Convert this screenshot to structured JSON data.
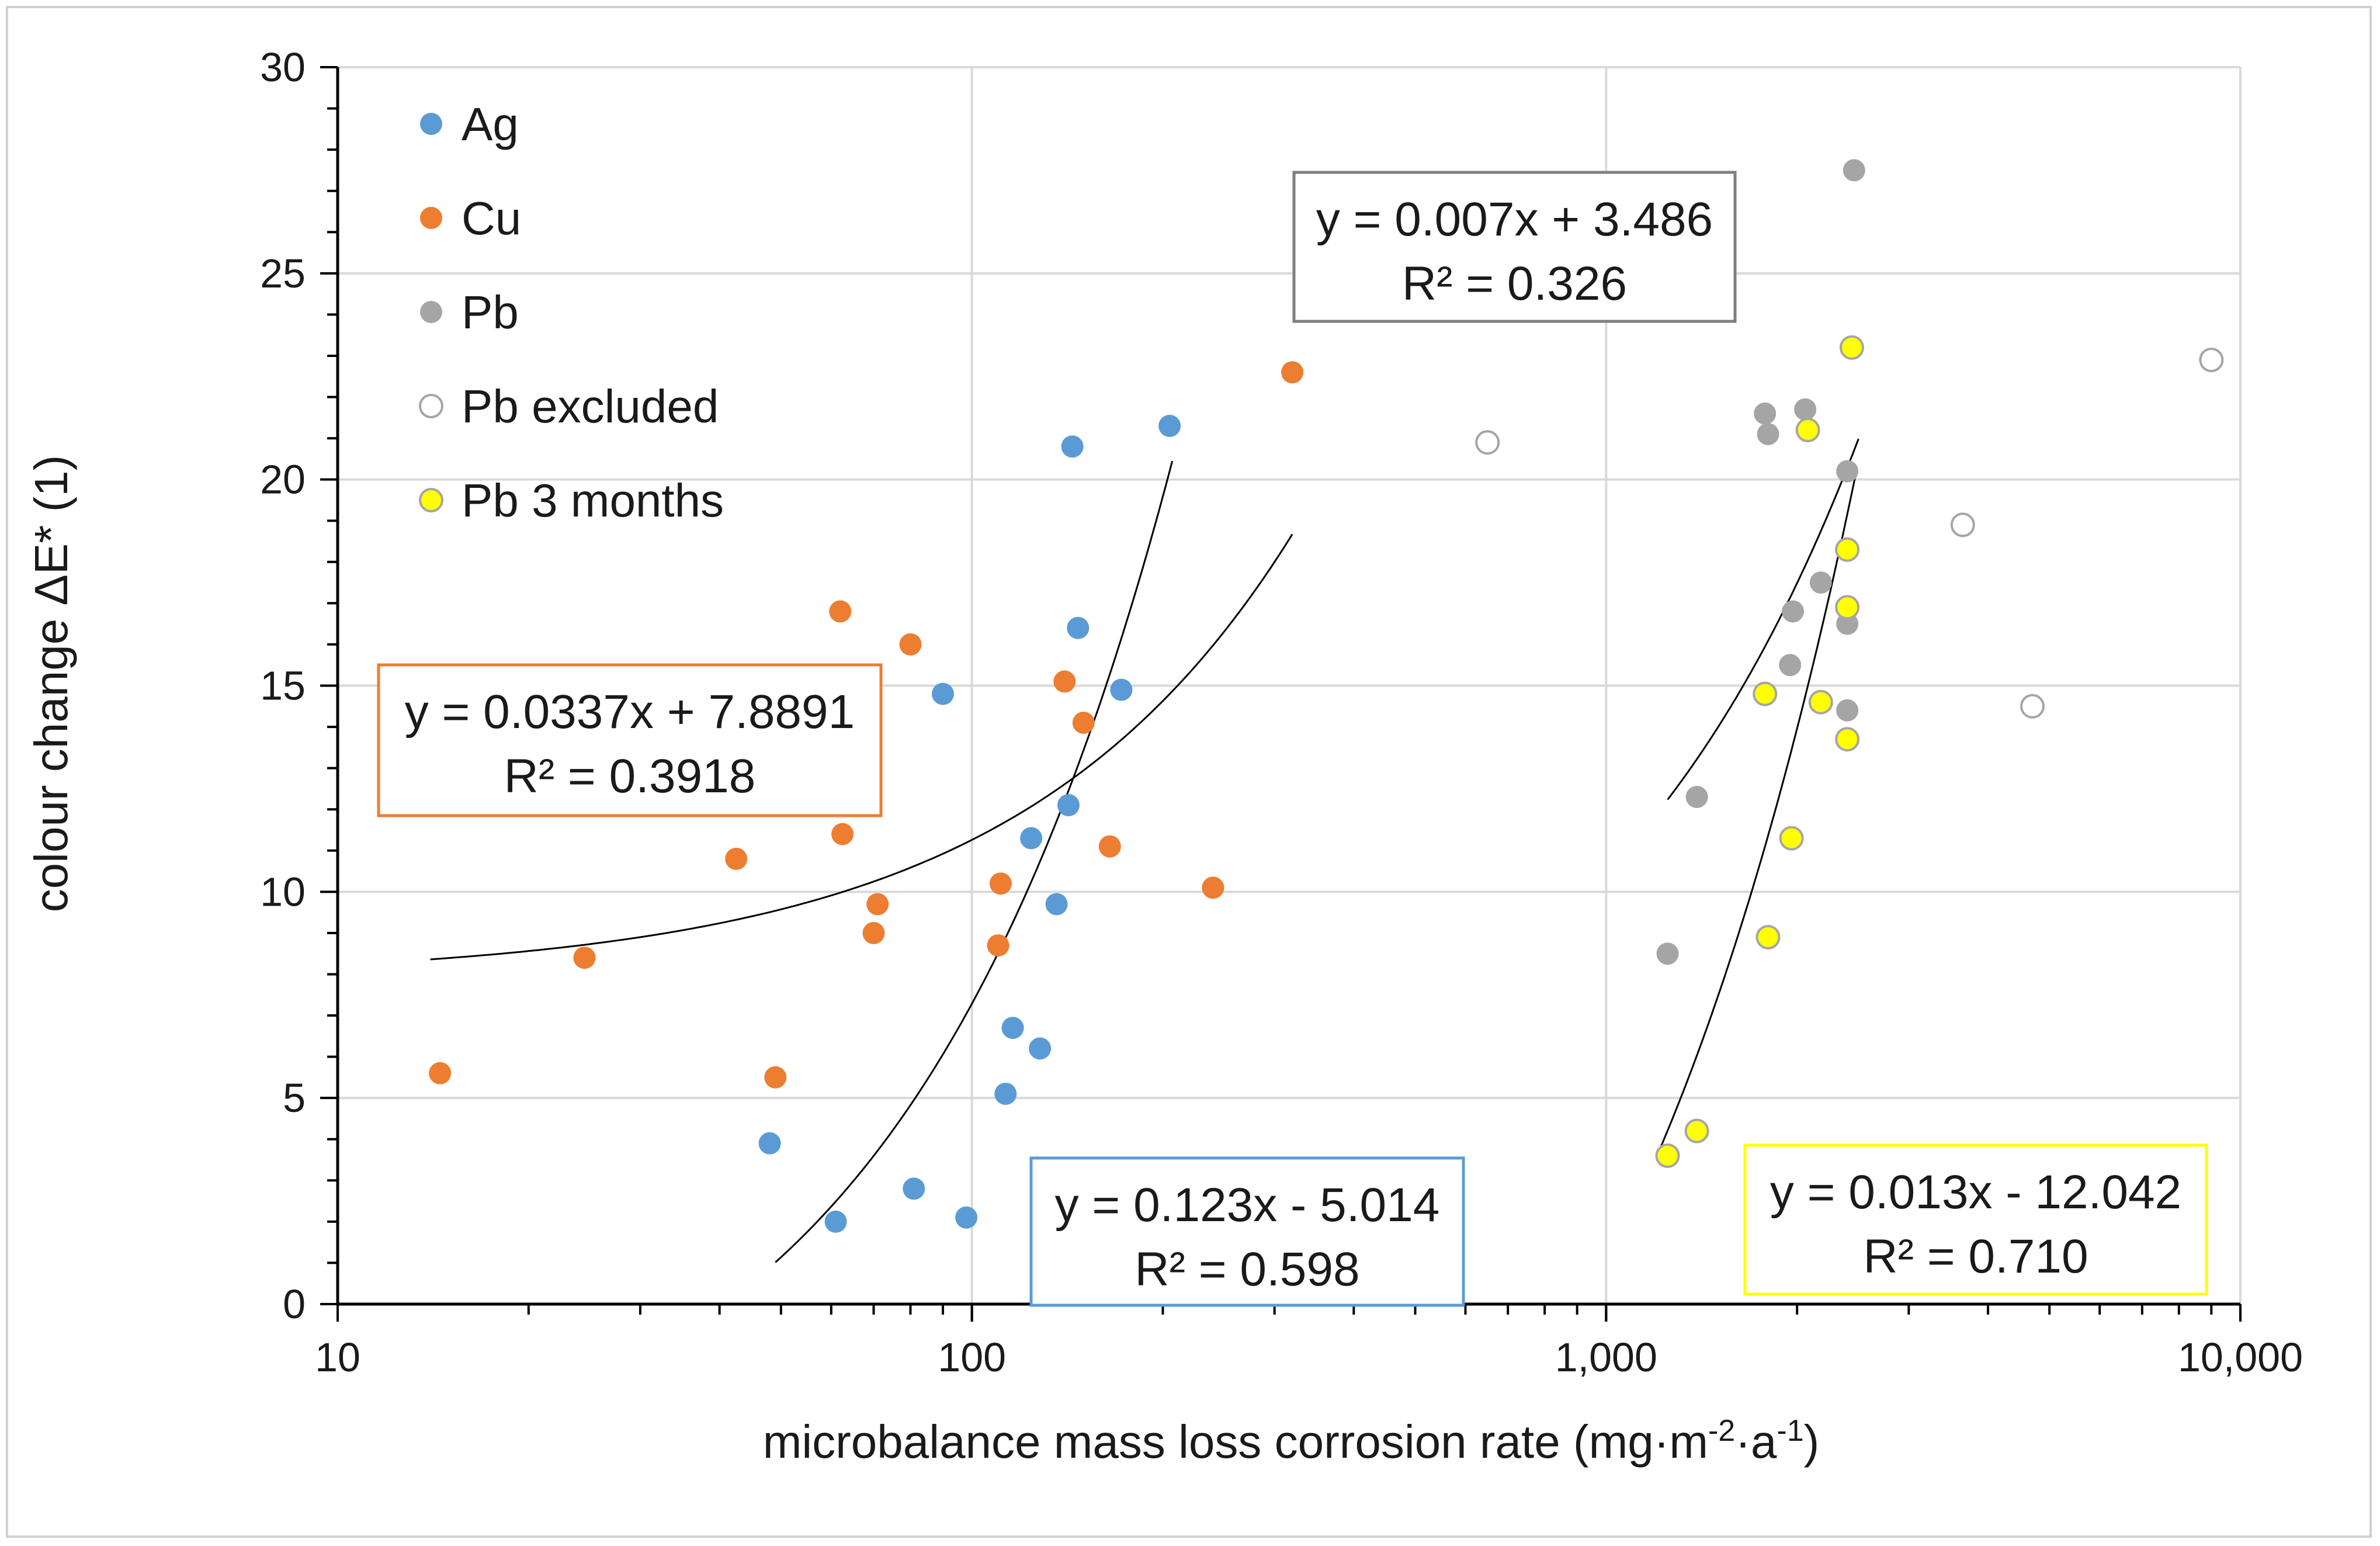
{
  "chart_data": {
    "type": "scatter",
    "title": "",
    "xlabel": "microbalance mass loss corrosion rate (mg·m",
    "xlabel_sup1": "-2",
    "xlabel_mid": "·a",
    "xlabel_sup2": "-1",
    "xlabel_end": ")",
    "ylabel": "colour change ΔE* (1)",
    "x_scale": "log",
    "xlim": [
      10,
      10000
    ],
    "ylim": [
      0,
      30
    ],
    "x_ticks": [
      10,
      100,
      1000,
      10000
    ],
    "x_tick_labels": [
      "10",
      "100",
      "1,000",
      "10,000"
    ],
    "y_ticks": [
      0,
      5,
      10,
      15,
      20,
      25,
      30
    ],
    "y_tick_labels": [
      "0",
      "5",
      "10",
      "15",
      "20",
      "25",
      "30"
    ],
    "grid": true,
    "legend_position": "top-left",
    "series": [
      {
        "name": "Ag",
        "color": "#5b9bd5",
        "marker": "filled-circle",
        "points": [
          [
            48,
            3.9
          ],
          [
            61,
            2.0
          ],
          [
            81,
            2.8
          ],
          [
            90,
            14.8
          ],
          [
            98,
            2.1
          ],
          [
            113,
            5.1
          ],
          [
            116,
            6.7
          ],
          [
            124,
            11.3
          ],
          [
            128,
            6.2
          ],
          [
            136,
            9.7
          ],
          [
            142,
            12.1
          ],
          [
            144,
            20.8
          ],
          [
            147,
            16.4
          ],
          [
            172,
            14.9
          ],
          [
            205,
            21.3
          ]
        ]
      },
      {
        "name": "Cu",
        "color": "#ed7d31",
        "marker": "filled-circle",
        "points": [
          [
            14.5,
            5.6
          ],
          [
            24.5,
            8.4
          ],
          [
            42.5,
            10.8
          ],
          [
            49,
            5.5
          ],
          [
            62,
            16.8
          ],
          [
            62.5,
            11.4
          ],
          [
            70,
            9.0
          ],
          [
            71,
            9.7
          ],
          [
            80,
            16.0
          ],
          [
            110,
            8.7
          ],
          [
            111,
            10.2
          ],
          [
            140,
            15.1
          ],
          [
            150,
            14.1
          ],
          [
            165,
            11.1
          ],
          [
            240,
            10.1
          ],
          [
            320,
            22.6
          ]
        ]
      },
      {
        "name": "Pb",
        "color": "#a5a5a5",
        "marker": "filled-circle",
        "points": [
          [
            1250,
            8.5
          ],
          [
            1390,
            12.3
          ],
          [
            1780,
            21.6
          ],
          [
            1800,
            21.1
          ],
          [
            1950,
            15.5
          ],
          [
            1970,
            16.8
          ],
          [
            2060,
            21.7
          ],
          [
            2180,
            17.5
          ],
          [
            2400,
            20.2
          ],
          [
            2400,
            16.5
          ],
          [
            2400,
            14.4
          ],
          [
            2460,
            27.5
          ]
        ]
      },
      {
        "name": "Pb excluded",
        "color": "#ffffff",
        "stroke": "#a5a5a5",
        "marker": "open-circle",
        "points": [
          [
            650,
            20.9
          ],
          [
            3650,
            18.9
          ],
          [
            4700,
            14.5
          ],
          [
            9000,
            22.9
          ]
        ]
      },
      {
        "name": "Pb 3 months",
        "color": "#ffff00",
        "stroke": "#a5a5a5",
        "marker": "filled-circle",
        "points": [
          [
            1250,
            3.6
          ],
          [
            1390,
            4.2
          ],
          [
            1780,
            14.8
          ],
          [
            1800,
            8.9
          ],
          [
            1960,
            11.3
          ],
          [
            2080,
            21.2
          ],
          [
            2180,
            14.6
          ],
          [
            2400,
            18.3
          ],
          [
            2400,
            16.9
          ],
          [
            2400,
            13.7
          ],
          [
            2440,
            23.2
          ]
        ]
      }
    ],
    "trendlines": [
      {
        "series": "Cu",
        "equation": "y = 0.0337x + 7.8891",
        "r2": "R² = 0.3918",
        "slope": 0.0337,
        "intercept": 7.8891,
        "x_range": [
          14,
          320
        ],
        "box_color": "#ed7d31"
      },
      {
        "series": "Ag",
        "equation": "y = 0.123x - 5.014",
        "r2": "R² = 0.598",
        "slope": 0.123,
        "intercept": -5.014,
        "x_range": [
          49,
          207
        ],
        "box_color": "#5b9bd5"
      },
      {
        "series": "Pb",
        "equation": "y = 0.007x + 3.486",
        "r2": "R² = 0.326",
        "slope": 0.007,
        "intercept": 3.486,
        "x_range": [
          1250,
          2500
        ],
        "box_color": "#7f7f7f"
      },
      {
        "series": "Pb 3 months",
        "equation": "y = 0.013x - 12.042",
        "r2": "R² = 0.710",
        "slope": 0.013,
        "intercept": -12.042,
        "x_range": [
          1215,
          2470
        ],
        "box_color": "#ffff00"
      }
    ]
  }
}
